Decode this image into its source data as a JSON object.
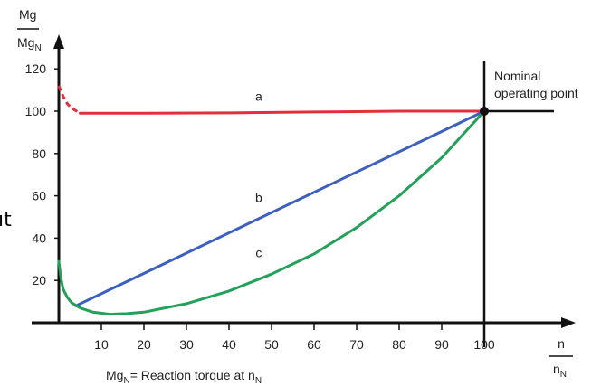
{
  "chart_data": {
    "type": "line",
    "ylabel": {
      "num": "Mg",
      "den_main": "Mg",
      "den_sub": "N"
    },
    "xlabel": {
      "num": "n",
      "den_main": "n",
      "den_sub": "N"
    },
    "xlim": [
      0,
      100
    ],
    "ylim": [
      0,
      120
    ],
    "x_ticks": [
      10,
      20,
      30,
      40,
      50,
      60,
      70,
      80,
      90,
      100
    ],
    "y_ticks": [
      20,
      40,
      60,
      80,
      100,
      120
    ],
    "fragment_text": "ıt",
    "nominal_label": [
      "Nominal",
      "operating point"
    ],
    "nominal_point": {
      "x": 100,
      "y": 100
    },
    "footnote": {
      "main": "Mg",
      "sub": "N",
      "rest": "= Reaction torque at n",
      "sub2": "N"
    },
    "series": [
      {
        "name": "a",
        "color": "#e0303c",
        "points": [
          [
            5,
            99
          ],
          [
            20,
            99
          ],
          [
            40,
            99.2
          ],
          [
            60,
            99.6
          ],
          [
            80,
            100
          ],
          [
            100,
            100
          ]
        ],
        "dashed_points": [
          [
            0,
            112
          ],
          [
            1,
            107
          ],
          [
            2,
            103.5
          ],
          [
            3,
            101.5
          ],
          [
            4,
            100.2
          ],
          [
            5,
            99
          ]
        ]
      },
      {
        "name": "b",
        "color": "#3d5fbf",
        "points": [
          [
            4,
            8
          ],
          [
            100,
            100
          ]
        ]
      },
      {
        "name": "c",
        "color": "#23a05a",
        "points": [
          [
            0,
            29
          ],
          [
            0.3,
            24
          ],
          [
            0.6,
            20
          ],
          [
            1,
            16
          ],
          [
            2,
            12
          ],
          [
            3,
            9.5
          ],
          [
            5,
            7
          ],
          [
            8,
            5
          ],
          [
            12,
            4
          ],
          [
            16,
            4.3
          ],
          [
            20,
            5
          ],
          [
            30,
            9
          ],
          [
            40,
            15
          ],
          [
            50,
            23
          ],
          [
            60,
            32.5
          ],
          [
            70,
            45
          ],
          [
            80,
            60
          ],
          [
            90,
            78
          ],
          [
            100,
            100
          ]
        ]
      }
    ],
    "series_labels": [
      {
        "name": "a",
        "x": 47,
        "y": 105
      },
      {
        "name": "b",
        "x": 47,
        "y": 57
      },
      {
        "name": "c",
        "x": 47,
        "y": 31
      }
    ]
  }
}
